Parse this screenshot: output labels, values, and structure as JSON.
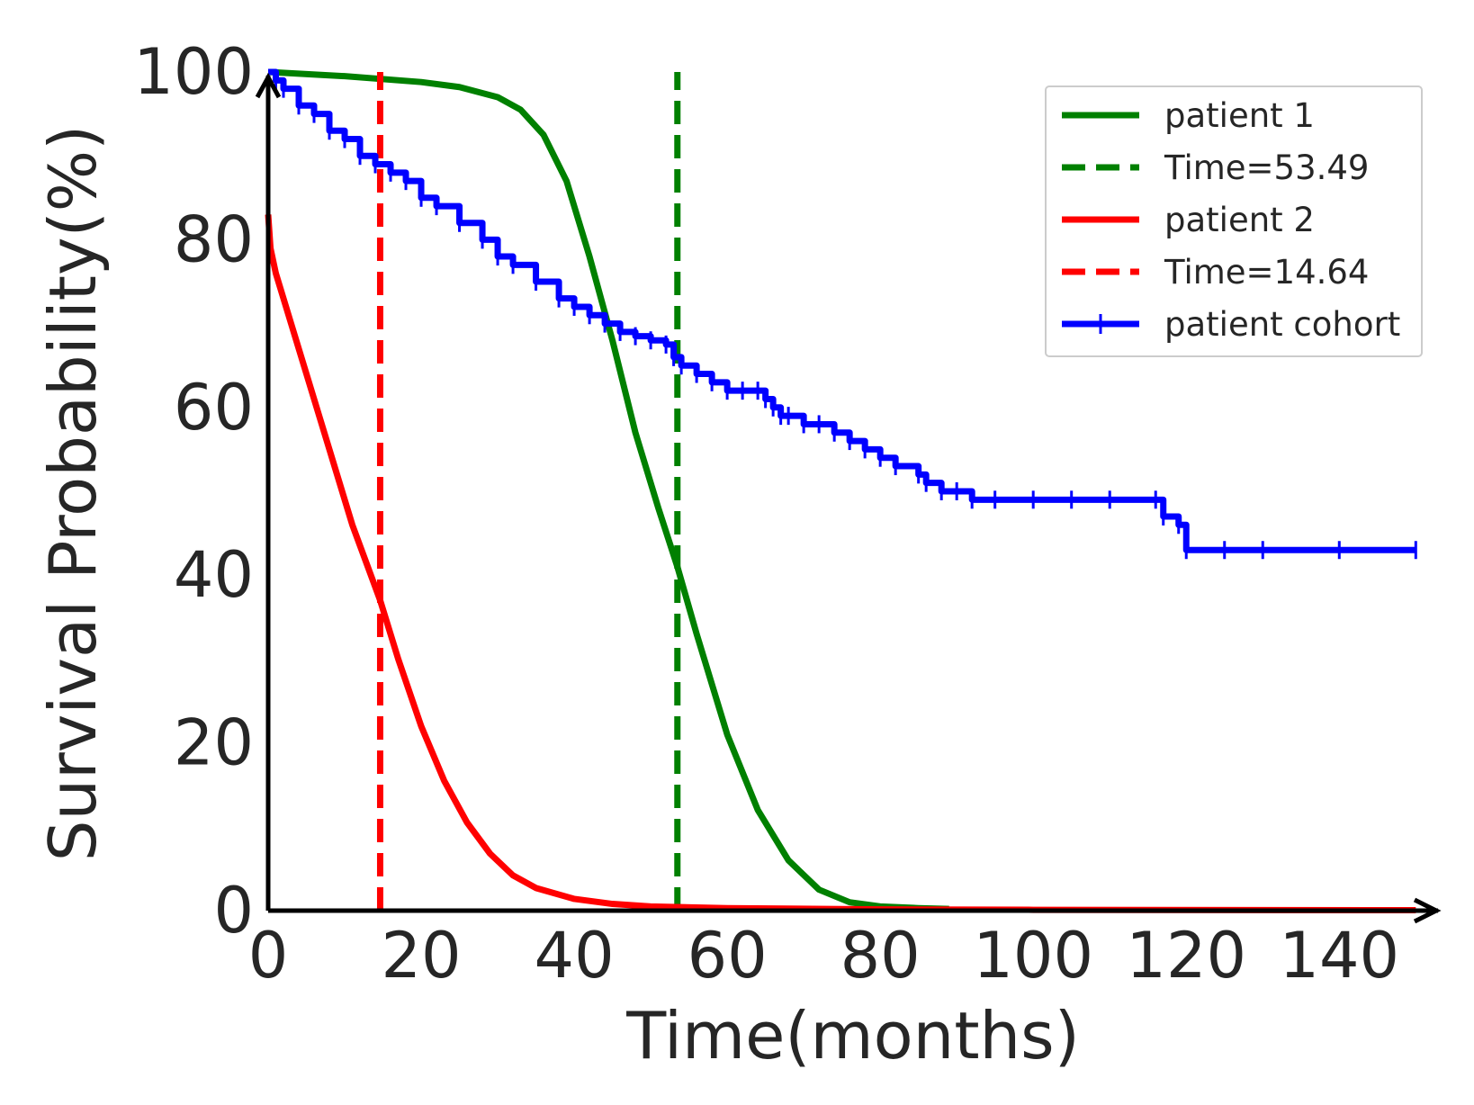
{
  "chart_data": {
    "type": "line",
    "title": "",
    "xlabel": "Time(months)",
    "ylabel": "Survival Probability(%)",
    "xlim": [
      0,
      150
    ],
    "ylim": [
      0,
      100
    ],
    "xticks": [
      "0",
      "20",
      "40",
      "60",
      "80",
      "100",
      "120",
      "140"
    ],
    "yticks": [
      "0",
      "20",
      "40",
      "60",
      "80",
      "100"
    ],
    "grid": false,
    "legend_position": "top-right",
    "series": [
      {
        "name": "patient 1",
        "style": "solid",
        "color": "#008000",
        "x": [
          0,
          10,
          20,
          25,
          30,
          33,
          36,
          39,
          42,
          45,
          48,
          51,
          53.49,
          56,
          60,
          64,
          68,
          72,
          76,
          80,
          85,
          89
        ],
        "y": [
          100,
          99.5,
          98.8,
          98.2,
          97,
          95.5,
          92.5,
          87,
          78,
          68,
          57,
          48,
          41,
          33,
          21,
          12,
          6,
          2.5,
          1,
          0.5,
          0.3,
          0.2
        ]
      },
      {
        "name": "Time=53.49",
        "style": "dashed",
        "color": "#008000",
        "x": [
          53.49,
          53.49
        ],
        "y": [
          0,
          100
        ]
      },
      {
        "name": "patient 2",
        "style": "solid",
        "color": "#ff0000",
        "x": [
          0,
          0.3,
          1,
          3,
          5,
          8,
          11,
          14.64,
          17,
          20,
          23,
          26,
          29,
          32,
          35,
          40,
          45,
          50,
          60,
          80,
          100,
          150
        ],
        "y": [
          83,
          79,
          76,
          70,
          64,
          55,
          46,
          37,
          30,
          22,
          15.5,
          10.5,
          6.8,
          4.2,
          2.7,
          1.4,
          0.8,
          0.5,
          0.3,
          0.15,
          0.1,
          0.05
        ]
      },
      {
        "name": "Time=14.64",
        "style": "dashed",
        "color": "#ff0000",
        "x": [
          14.64,
          14.64
        ],
        "y": [
          0,
          100
        ]
      },
      {
        "name": "patient cohort",
        "style": "step",
        "color": "#0000ff",
        "x": [
          0,
          1,
          2,
          4,
          6,
          8,
          10,
          12,
          14,
          16,
          18,
          20,
          22,
          25,
          28,
          30,
          32,
          35,
          38,
          40,
          42,
          44,
          46,
          48,
          50,
          52,
          53,
          54,
          56,
          58,
          60,
          62,
          64,
          65,
          66,
          67,
          68,
          70,
          72,
          74,
          76,
          78,
          80,
          82,
          85,
          86,
          88,
          90,
          92,
          95,
          100,
          105,
          110,
          116,
          117,
          119,
          120,
          125,
          130,
          140,
          150
        ],
        "y": [
          100,
          99,
          98,
          96,
          95,
          93,
          92,
          90,
          89,
          88,
          87,
          85,
          84,
          82,
          80,
          78,
          77,
          75,
          73,
          72,
          71,
          70,
          69,
          68.5,
          68,
          67.5,
          66,
          65,
          64,
          63,
          62,
          62,
          62,
          61,
          60,
          59,
          59,
          58,
          58,
          57,
          56,
          55,
          54,
          53,
          52,
          51,
          50,
          50,
          49,
          49,
          49,
          49,
          49,
          49,
          47,
          46,
          43,
          43,
          43,
          43,
          43
        ]
      }
    ]
  }
}
